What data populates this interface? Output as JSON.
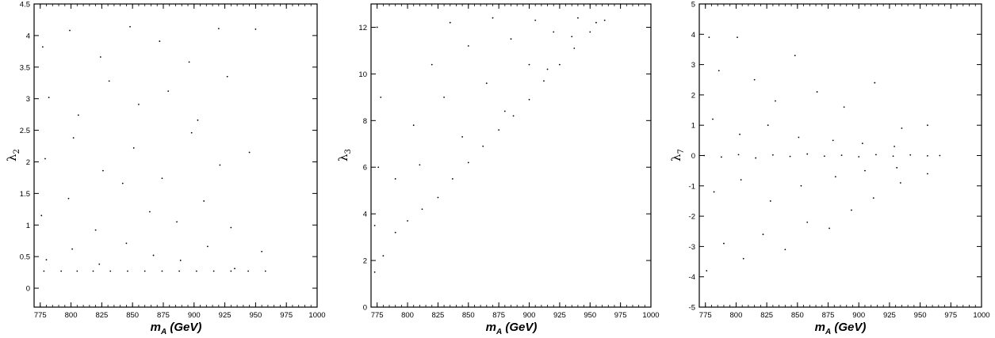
{
  "chart_data": [
    {
      "type": "scatter",
      "xlabel": "m_A (GeV)",
      "xlabel_main": "m",
      "xlabel_sub": "A",
      "xlabel_unit": " (GeV)",
      "ylabel": "λ_2",
      "ylabel_main": "λ",
      "ylabel_sub": "2",
      "xlim": [
        770,
        1000
      ],
      "ylim": [
        -0.3,
        4.5
      ],
      "xticks": [
        775,
        800,
        825,
        850,
        875,
        900,
        925,
        950,
        975,
        1000
      ],
      "yticks": [
        0,
        0.5,
        1,
        1.5,
        2,
        2.5,
        3,
        3.5,
        4,
        4.5
      ],
      "ytick_labels": [
        "0",
        "0.5",
        "1",
        "1.5",
        "2",
        "2.5",
        "3",
        "3.5",
        "4",
        "4.5"
      ],
      "grid": false,
      "series": [
        {
          "color": "#000000",
          "points": [
            [
              778,
              0.27
            ],
            [
              792,
              0.27
            ],
            [
              805,
              0.27
            ],
            [
              818,
              0.27
            ],
            [
              832,
              0.27
            ],
            [
              846,
              0.27
            ],
            [
              860,
              0.27
            ],
            [
              874,
              0.27
            ],
            [
              888,
              0.27
            ],
            [
              902,
              0.27
            ],
            [
              916,
              0.27
            ],
            [
              930,
              0.27
            ],
            [
              944,
              0.27
            ],
            [
              958,
              0.27
            ],
            [
              780,
              0.45
            ],
            [
              801,
              0.62
            ],
            [
              823,
              0.38
            ],
            [
              845,
              0.71
            ],
            [
              867,
              0.52
            ],
            [
              889,
              0.44
            ],
            [
              911,
              0.66
            ],
            [
              933,
              0.31
            ],
            [
              955,
              0.58
            ],
            [
              776,
              1.15
            ],
            [
              798,
              1.42
            ],
            [
              820,
              0.92
            ],
            [
              842,
              1.66
            ],
            [
              864,
              1.21
            ],
            [
              886,
              1.05
            ],
            [
              908,
              1.38
            ],
            [
              930,
              0.96
            ],
            [
              779,
              2.05
            ],
            [
              802,
              2.38
            ],
            [
              826,
              1.86
            ],
            [
              851,
              2.22
            ],
            [
              874,
              1.74
            ],
            [
              898,
              2.46
            ],
            [
              921,
              1.95
            ],
            [
              945,
              2.15
            ],
            [
              782,
              3.02
            ],
            [
              806,
              2.74
            ],
            [
              831,
              3.28
            ],
            [
              855,
              2.91
            ],
            [
              879,
              3.12
            ],
            [
              903,
              2.66
            ],
            [
              927,
              3.35
            ],
            [
              777,
              3.82
            ],
            [
              799,
              4.08
            ],
            [
              824,
              3.66
            ],
            [
              848,
              4.14
            ],
            [
              872,
              3.91
            ],
            [
              896,
              3.58
            ],
            [
              920,
              4.11
            ],
            [
              950,
              4.1
            ]
          ]
        }
      ]
    },
    {
      "type": "scatter",
      "xlabel": "m_A (GeV)",
      "xlabel_main": "m",
      "xlabel_sub": "A",
      "xlabel_unit": " (GeV)",
      "ylabel": "λ_3",
      "ylabel_main": "λ",
      "ylabel_sub": "3",
      "xlim": [
        770,
        1000
      ],
      "ylim": [
        0,
        13
      ],
      "xticks": [
        775,
        800,
        825,
        850,
        875,
        900,
        925,
        950,
        975,
        1000
      ],
      "yticks": [
        0,
        2,
        4,
        6,
        8,
        10,
        12
      ],
      "ytick_labels": [
        "0",
        "2",
        "4",
        "6",
        "8",
        "10",
        "12"
      ],
      "grid": false,
      "series": [
        {
          "color": "#000000",
          "points": [
            [
              773,
              1.5
            ],
            [
              780,
              2.2
            ],
            [
              790,
              3.2
            ],
            [
              800,
              3.7
            ],
            [
              812,
              4.2
            ],
            [
              825,
              4.7
            ],
            [
              837,
              5.5
            ],
            [
              850,
              6.2
            ],
            [
              862,
              6.9
            ],
            [
              875,
              7.6
            ],
            [
              887,
              8.2
            ],
            [
              900,
              8.9
            ],
            [
              912,
              9.7
            ],
            [
              925,
              10.4
            ],
            [
              937,
              11.1
            ],
            [
              950,
              11.8
            ],
            [
              962,
              12.3
            ],
            [
              773,
              3.5
            ],
            [
              776,
              6.0
            ],
            [
              778,
              9.0
            ],
            [
              775,
              12.0
            ],
            [
              790,
              5.5
            ],
            [
              805,
              7.8
            ],
            [
              820,
              10.4
            ],
            [
              835,
              12.2
            ],
            [
              810,
              6.1
            ],
            [
              830,
              9.0
            ],
            [
              850,
              11.2
            ],
            [
              870,
              12.4
            ],
            [
              845,
              7.3
            ],
            [
              865,
              9.6
            ],
            [
              885,
              11.5
            ],
            [
              905,
              12.3
            ],
            [
              880,
              8.4
            ],
            [
              900,
              10.4
            ],
            [
              920,
              11.8
            ],
            [
              940,
              12.4
            ],
            [
              915,
              10.2
            ],
            [
              935,
              11.6
            ],
            [
              955,
              12.2
            ]
          ]
        }
      ]
    },
    {
      "type": "scatter",
      "xlabel": "m_A (GeV)",
      "xlabel_main": "m",
      "xlabel_sub": "A",
      "xlabel_unit": " (GeV)",
      "ylabel": "λ_7",
      "ylabel_main": "λ",
      "ylabel_sub": "7",
      "xlim": [
        770,
        1000
      ],
      "ylim": [
        -5,
        5
      ],
      "xticks": [
        775,
        800,
        825,
        850,
        875,
        900,
        925,
        950,
        975,
        1000
      ],
      "yticks": [
        -5,
        -4,
        -3,
        -2,
        -1,
        0,
        1,
        2,
        3,
        4,
        5
      ],
      "ytick_labels": [
        "-5",
        "-4",
        "-3",
        "-2",
        "-1",
        "0",
        "1",
        "2",
        "3",
        "4",
        "5"
      ],
      "grid": false,
      "series": [
        {
          "color": "#000000",
          "points": [
            [
              774,
              0.0
            ],
            [
              788,
              -0.05
            ],
            [
              802,
              0.03
            ],
            [
              816,
              -0.08
            ],
            [
              830,
              0.02
            ],
            [
              844,
              -0.03
            ],
            [
              858,
              0.05
            ],
            [
              872,
              -0.02
            ],
            [
              886,
              0.01
            ],
            [
              900,
              -0.04
            ],
            [
              914,
              0.03
            ],
            [
              928,
              -0.02
            ],
            [
              942,
              0.02
            ],
            [
              956,
              -0.01
            ],
            [
              966,
              0.0
            ],
            [
              778,
              3.9
            ],
            [
              786,
              2.8
            ],
            [
              801,
              3.9
            ],
            [
              815,
              2.5
            ],
            [
              832,
              1.8
            ],
            [
              848,
              3.3
            ],
            [
              866,
              2.1
            ],
            [
              888,
              1.6
            ],
            [
              913,
              2.4
            ],
            [
              935,
              0.9
            ],
            [
              956,
              1.0
            ],
            [
              776,
              -3.8
            ],
            [
              790,
              -2.9
            ],
            [
              806,
              -3.4
            ],
            [
              822,
              -2.6
            ],
            [
              840,
              -3.1
            ],
            [
              858,
              -2.2
            ],
            [
              876,
              -2.4
            ],
            [
              894,
              -1.8
            ],
            [
              912,
              -1.4
            ],
            [
              934,
              -0.9
            ],
            [
              956,
              -0.6
            ],
            [
              781,
              1.2
            ],
            [
              803,
              0.7
            ],
            [
              826,
              1.0
            ],
            [
              851,
              0.6
            ],
            [
              879,
              0.5
            ],
            [
              903,
              0.4
            ],
            [
              929,
              0.3
            ],
            [
              782,
              -1.2
            ],
            [
              804,
              -0.8
            ],
            [
              828,
              -1.5
            ],
            [
              853,
              -1.0
            ],
            [
              881,
              -0.7
            ],
            [
              905,
              -0.5
            ],
            [
              931,
              -0.4
            ]
          ]
        }
      ]
    }
  ]
}
